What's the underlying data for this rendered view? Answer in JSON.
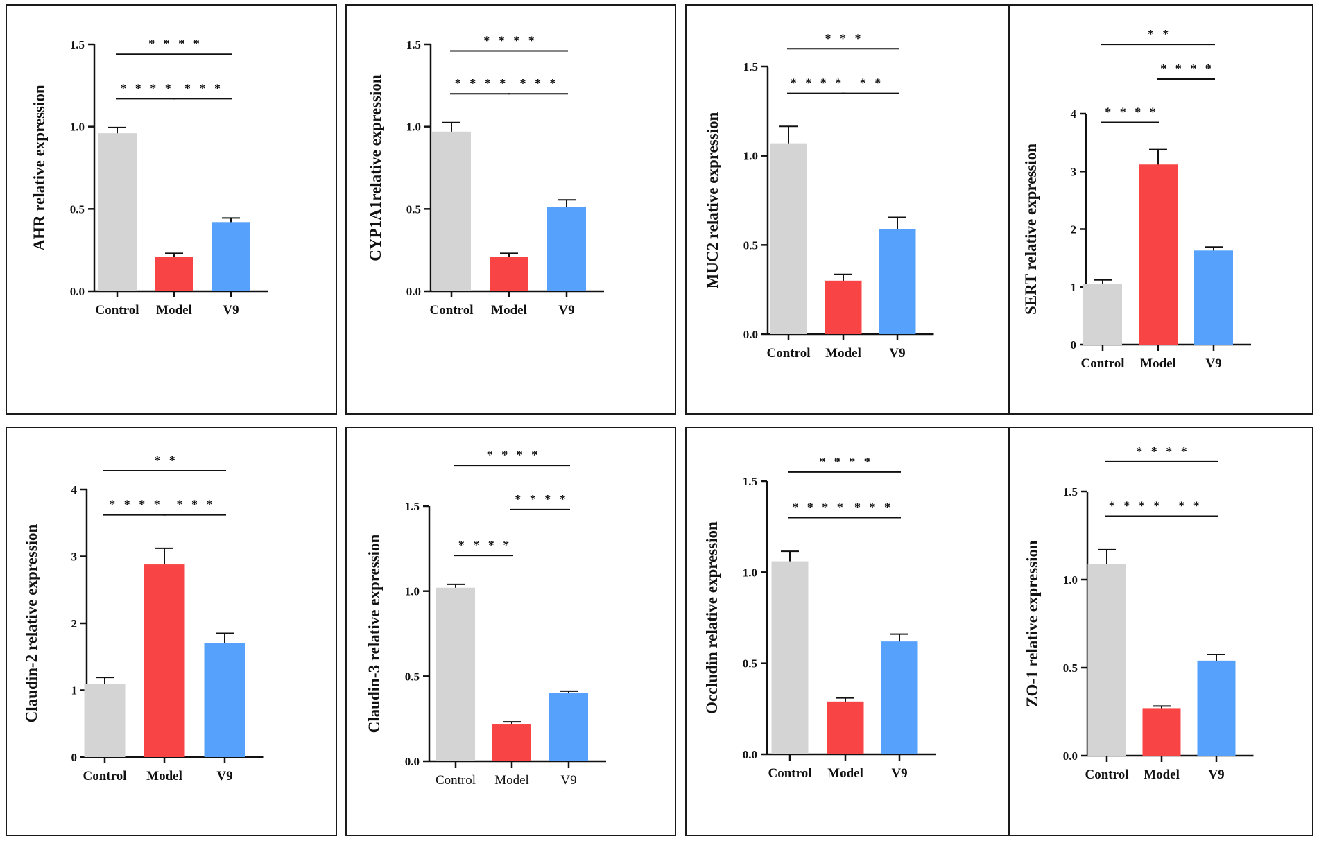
{
  "colors": {
    "Control": "#d4d4d4",
    "Model": "#f84444",
    "V9": "#55a1fb",
    "axis": "#111111"
  },
  "chart_data": [
    {
      "type": "bar",
      "ylabel": "AHR relative expression",
      "categories": [
        "Control",
        "Model",
        "V9"
      ],
      "values": [
        0.96,
        0.21,
        0.42
      ],
      "errors": [
        0.035,
        0.02,
        0.025
      ],
      "ylim": [
        0,
        1.5
      ],
      "ticks": [
        0.0,
        0.5,
        1.0,
        1.5
      ],
      "tick_labels": [
        "0.0",
        "0.5",
        "1.0",
        "1.5"
      ],
      "bold_categories": true,
      "significance": [
        {
          "from": 0,
          "to": 2,
          "label": "****",
          "level": 1.44
        },
        {
          "from": 0,
          "to": 1,
          "label": "****",
          "level": 1.17
        },
        {
          "from": 1,
          "to": 2,
          "label": "***",
          "level": 1.17
        }
      ]
    },
    {
      "type": "bar",
      "ylabel": "CYP1A1relative expression",
      "categories": [
        "Control",
        "Model",
        "V9"
      ],
      "values": [
        0.97,
        0.21,
        0.51
      ],
      "errors": [
        0.055,
        0.02,
        0.045
      ],
      "ylim": [
        0,
        1.5
      ],
      "ticks": [
        0.0,
        0.5,
        1.0,
        1.5
      ],
      "tick_labels": [
        "0.0",
        "0.5",
        "1.0",
        "1.5"
      ],
      "bold_categories": true,
      "significance": [
        {
          "from": 0,
          "to": 2,
          "label": "****",
          "level": 1.46
        },
        {
          "from": 0,
          "to": 1,
          "label": "****",
          "level": 1.2
        },
        {
          "from": 1,
          "to": 2,
          "label": "***",
          "level": 1.2
        }
      ]
    },
    {
      "type": "bar",
      "ylabel": "MUC2 relative expression",
      "categories": [
        "Control",
        "Model",
        "V9"
      ],
      "values": [
        1.07,
        0.3,
        0.59
      ],
      "errors": [
        0.095,
        0.035,
        0.065
      ],
      "ylim": [
        0,
        1.5
      ],
      "ticks": [
        0.0,
        0.5,
        1.0,
        1.5
      ],
      "tick_labels": [
        "0.0",
        "0.5",
        "1.0",
        "1.5"
      ],
      "bold_categories": true,
      "significance": [
        {
          "from": 0,
          "to": 2,
          "label": "***",
          "level": 1.6
        },
        {
          "from": 0,
          "to": 1,
          "label": "****",
          "level": 1.35
        },
        {
          "from": 1,
          "to": 2,
          "label": "**",
          "level": 1.35
        }
      ]
    },
    {
      "type": "bar",
      "ylabel": "SERT relative expression",
      "categories": [
        "Control",
        "Model",
        "V9"
      ],
      "values": [
        1.05,
        3.12,
        1.63
      ],
      "errors": [
        0.07,
        0.26,
        0.06
      ],
      "ylim": [
        0,
        4
      ],
      "ticks": [
        0,
        1,
        2,
        3,
        4
      ],
      "tick_labels": [
        "0",
        "1",
        "2",
        "3",
        "4"
      ],
      "bold_categories": true,
      "significance": [
        {
          "from": 0,
          "to": 2,
          "label": "**",
          "level": 5.2
        },
        {
          "from": 1,
          "to": 2,
          "label": "****",
          "level": 4.6
        },
        {
          "from": 0,
          "to": 1,
          "label": "****",
          "level": 3.85
        }
      ]
    },
    {
      "type": "bar",
      "ylabel": "Claudin-2 relative expression",
      "categories": [
        "Control",
        "Model",
        "V9"
      ],
      "values": [
        1.09,
        2.88,
        1.71
      ],
      "errors": [
        0.1,
        0.24,
        0.14
      ],
      "ylim": [
        0,
        4
      ],
      "ticks": [
        0,
        1,
        2,
        3,
        4
      ],
      "tick_labels": [
        "0",
        "1",
        "2",
        "3",
        "4"
      ],
      "bold_categories": true,
      "significance": [
        {
          "from": 0,
          "to": 2,
          "label": "**",
          "level": 4.28
        },
        {
          "from": 0,
          "to": 1,
          "label": "****",
          "level": 3.62
        },
        {
          "from": 1,
          "to": 2,
          "label": "***",
          "level": 3.62
        }
      ]
    },
    {
      "type": "bar",
      "ylabel": "Claudin-3 relative expression",
      "categories": [
        "Control",
        "Model",
        "V9"
      ],
      "values": [
        1.02,
        0.22,
        0.4
      ],
      "errors": [
        0.02,
        0.012,
        0.012
      ],
      "ylim": [
        0,
        1.5
      ],
      "ticks": [
        0.0,
        0.5,
        1.0,
        1.5
      ],
      "tick_labels": [
        "0.0",
        "0.5",
        "1.0",
        "1.5"
      ],
      "bold_categories": false,
      "significance": [
        {
          "from": 0,
          "to": 2,
          "label": "****",
          "level": 1.74
        },
        {
          "from": 1,
          "to": 2,
          "label": "****",
          "level": 1.48
        },
        {
          "from": 0,
          "to": 1,
          "label": "****",
          "level": 1.21
        }
      ]
    },
    {
      "type": "bar",
      "ylabel": "Occludin relative expression",
      "categories": [
        "Control",
        "Model",
        "V9"
      ],
      "values": [
        1.06,
        0.29,
        0.62
      ],
      "errors": [
        0.055,
        0.02,
        0.04
      ],
      "ylim": [
        0,
        1.5
      ],
      "ticks": [
        0.0,
        0.5,
        1.0,
        1.5
      ],
      "tick_labels": [
        "0.0",
        "0.5",
        "1.0",
        "1.5"
      ],
      "bold_categories": true,
      "significance": [
        {
          "from": 0,
          "to": 2,
          "label": "****",
          "level": 1.55
        },
        {
          "from": 0,
          "to": 1,
          "label": "****",
          "level": 1.3
        },
        {
          "from": 1,
          "to": 2,
          "label": "***",
          "level": 1.3
        }
      ]
    },
    {
      "type": "bar",
      "ylabel": "ZO-1 relative expression",
      "categories": [
        "Control",
        "Model",
        "V9"
      ],
      "values": [
        1.09,
        0.27,
        0.54
      ],
      "errors": [
        0.08,
        0.012,
        0.035
      ],
      "ylim": [
        0,
        1.5
      ],
      "ticks": [
        0.0,
        0.5,
        1.0,
        1.5
      ],
      "tick_labels": [
        "0.0",
        "0.5",
        "1.0",
        "1.5"
      ],
      "bold_categories": true,
      "significance": [
        {
          "from": 0,
          "to": 2,
          "label": "****",
          "level": 1.67
        },
        {
          "from": 0,
          "to": 1,
          "label": "****",
          "level": 1.36
        },
        {
          "from": 1,
          "to": 2,
          "label": "**",
          "level": 1.36
        }
      ]
    }
  ]
}
